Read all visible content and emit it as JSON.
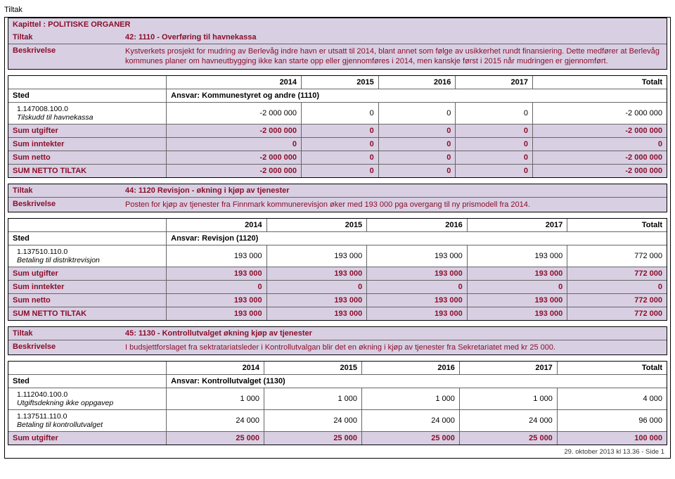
{
  "doc_title": "Tiltak",
  "chapter_label": "Kapittel : POLITISKE ORGANER",
  "year_cols": [
    "2014",
    "2015",
    "2016",
    "2017",
    "Totalt"
  ],
  "sted_label": "Sted",
  "tiltak_label": "Tiltak",
  "beskrivelse_label": "Beskrivelse",
  "sum_rows": {
    "utgifter": "Sum utgifter",
    "inntekter": "Sum inntekter",
    "netto": "Sum netto",
    "netto_tiltak": "SUM NETTO TILTAK"
  },
  "sections": {
    "s1": {
      "tiltak_title": "42: 1110 - Overføring til havnekassa",
      "desc": "Kystverkets prosjekt for mudring av Berlevåg indre havn er utsatt til 2014, blant annet som følge av usikkerhet rundt finansiering. Dette medfører at Berlevåg kommunes planer om havneutbygging ikke kan starte opp eller gjennomføres i 2014, men kanskje først i 2015 når mudringen er gjennomført.",
      "ansvar": "Ansvar: Kommunestyret og andre (1110)",
      "lines": [
        {
          "code": "1.147008.100.0",
          "name": "Tilskudd til havnekassa",
          "vals": [
            "-2 000 000",
            "0",
            "0",
            "0",
            "-2 000 000"
          ]
        }
      ],
      "utgifter": [
        "-2 000 000",
        "0",
        "0",
        "0",
        "-2 000 000"
      ],
      "inntekter": [
        "0",
        "0",
        "0",
        "0",
        "0"
      ],
      "netto": [
        "-2 000 000",
        "0",
        "0",
        "0",
        "-2 000 000"
      ],
      "netto_tiltak": [
        "-2 000 000",
        "0",
        "0",
        "0",
        "-2 000 000"
      ]
    },
    "s2": {
      "tiltak_title": "44: 1120 Revisjon - økning i kjøp av tjenester",
      "desc": "Posten for kjøp av tjenester fra Finnmark kommunerevisjon øker med 193 000 pga overgang til ny prismodell fra 2014.",
      "ansvar": "Ansvar: Revisjon (1120)",
      "lines": [
        {
          "code": "1.137510.110.0",
          "name": "Betaling til distriktrevisjon",
          "vals": [
            "193 000",
            "193 000",
            "193 000",
            "193 000",
            "772 000"
          ]
        }
      ],
      "utgifter": [
        "193 000",
        "193 000",
        "193 000",
        "193 000",
        "772 000"
      ],
      "inntekter": [
        "0",
        "0",
        "0",
        "0",
        "0"
      ],
      "netto": [
        "193 000",
        "193 000",
        "193 000",
        "193 000",
        "772 000"
      ],
      "netto_tiltak": [
        "193 000",
        "193 000",
        "193 000",
        "193 000",
        "772 000"
      ]
    },
    "s3": {
      "tiltak_title": "45: 1130 - Kontrollutvalget økning kjøp av tjenester",
      "desc": "I budsjettforslaget fra sektratariatsleder i Kontrollutvalgan blir det en økning i kjøp av tjenester fra Sekretariatet med kr 25 000.",
      "ansvar": "Ansvar: Kontrollutvalget (1130)",
      "lines": [
        {
          "code": "1.112040.100.0",
          "name": "Utgiftsdekning  ikke oppgavep",
          "vals": [
            "1 000",
            "1 000",
            "1 000",
            "1 000",
            "4 000"
          ]
        },
        {
          "code": "1.137511.110.0",
          "name": "Betaling til kontrollutvalget",
          "vals": [
            "24 000",
            "24 000",
            "24 000",
            "24 000",
            "96 000"
          ]
        }
      ],
      "utgifter": [
        "25 000",
        "25 000",
        "25 000",
        "25 000",
        "100 000"
      ]
    }
  },
  "footer": "29. oktober 2013 kl 13.36 - Side 1"
}
